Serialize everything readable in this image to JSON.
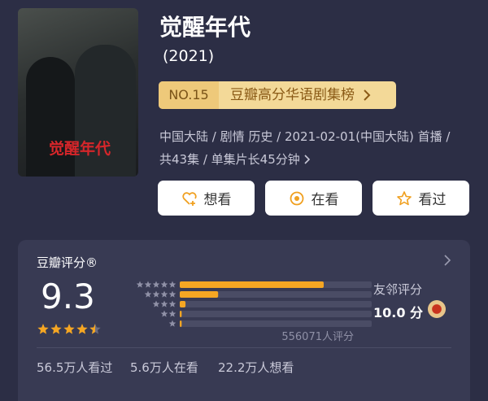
{
  "poster": {
    "title": "觉醒年代"
  },
  "header": {
    "title": "觉醒年代",
    "year": "(2021)"
  },
  "rank": {
    "number": "NO.15",
    "list": "豆瓣高分华语剧集榜"
  },
  "info": {
    "line1": "中国大陆 / 剧情 历史 / 2021-02-01(中国大陆) 首播 /",
    "line2": "共43集 / 单集片长45分钟"
  },
  "buttons": [
    "想看",
    "在看",
    "看过"
  ],
  "rating": {
    "label": "豆瓣评分®",
    "score": "9.3",
    "count": "556071人评分",
    "distribution": [
      75,
      20,
      3,
      1,
      1
    ],
    "friends_label": "友邻评分",
    "friends_score": "10.0 分"
  },
  "stats": [
    "56.5万人看过",
    "5.6万人在看",
    "22.2万人想看"
  ]
}
